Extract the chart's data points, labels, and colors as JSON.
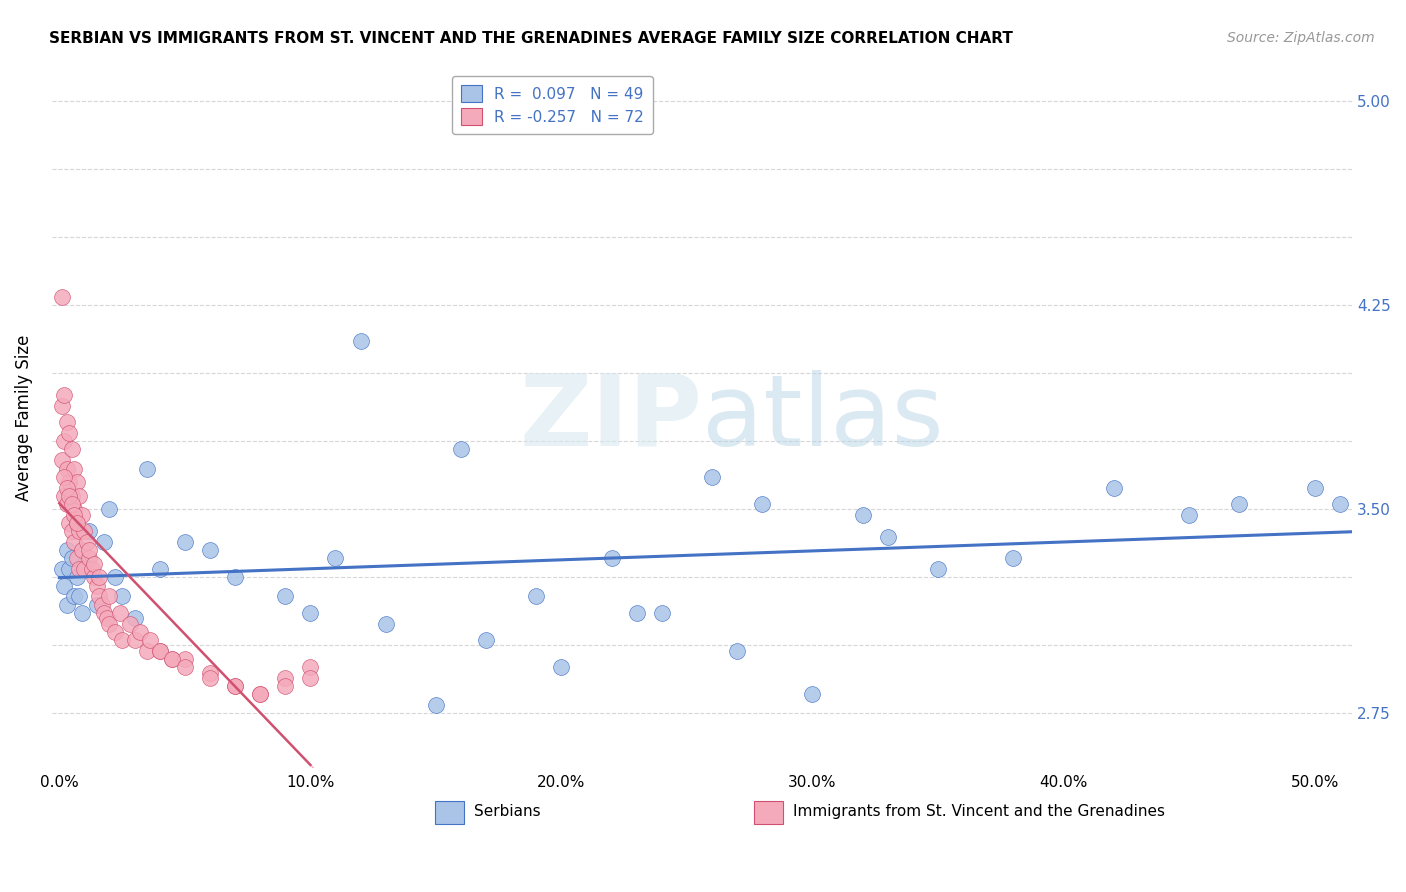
{
  "title": "SERBIAN VS IMMIGRANTS FROM ST. VINCENT AND THE GRENADINES AVERAGE FAMILY SIZE CORRELATION CHART",
  "source": "Source: ZipAtlas.com",
  "ylabel": "Average Family Size",
  "yticks_right": [
    2.75,
    3.5,
    4.25,
    5.0
  ],
  "yticks_grid": [
    2.75,
    3.0,
    3.25,
    3.5,
    3.75,
    4.0,
    4.25,
    4.5,
    4.75,
    5.0
  ],
  "ymin": 2.55,
  "ymax": 5.12,
  "xmin": -0.003,
  "xmax": 0.515,
  "xticks": [
    0.0,
    0.1,
    0.2,
    0.3,
    0.4,
    0.5
  ],
  "xtick_labels": [
    "0.0%",
    "10.0%",
    "20.0%",
    "30.0%",
    "40.0%",
    "50.0%"
  ],
  "legend_r1": "R =  0.097   N = 49",
  "legend_r2": "R = -0.257   N = 72",
  "legend_color1": "#aac4e8",
  "legend_color2": "#f4aabb",
  "scatter_color1": "#aac4e8",
  "scatter_color2": "#f4aabb",
  "line_color1": "#4472c4",
  "line_color2": "#d05070",
  "watermark_zip": "ZIP",
  "watermark_atlas": "atlas",
  "blue_x": [
    0.001,
    0.002,
    0.003,
    0.003,
    0.004,
    0.005,
    0.006,
    0.007,
    0.008,
    0.009,
    0.01,
    0.012,
    0.015,
    0.018,
    0.02,
    0.022,
    0.025,
    0.03,
    0.035,
    0.04,
    0.05,
    0.06,
    0.07,
    0.09,
    0.1,
    0.11,
    0.13,
    0.15,
    0.17,
    0.2,
    0.22,
    0.24,
    0.26,
    0.28,
    0.3,
    0.32,
    0.35,
    0.38,
    0.42,
    0.45,
    0.47,
    0.5,
    0.51,
    0.12,
    0.16,
    0.19,
    0.23,
    0.27,
    0.33
  ],
  "blue_y": [
    3.28,
    3.22,
    3.35,
    3.15,
    3.28,
    3.32,
    3.18,
    3.25,
    3.18,
    3.12,
    3.3,
    3.42,
    3.15,
    3.38,
    3.5,
    3.25,
    3.18,
    3.1,
    3.65,
    3.28,
    3.38,
    3.35,
    3.25,
    3.18,
    3.12,
    3.32,
    3.08,
    2.78,
    3.02,
    2.92,
    3.32,
    3.12,
    3.62,
    3.52,
    2.82,
    3.48,
    3.28,
    3.32,
    3.58,
    3.48,
    3.52,
    3.58,
    3.52,
    4.12,
    3.72,
    3.18,
    3.12,
    2.98,
    3.4
  ],
  "pink_x": [
    0.001,
    0.001,
    0.001,
    0.002,
    0.002,
    0.002,
    0.003,
    0.003,
    0.003,
    0.004,
    0.004,
    0.004,
    0.005,
    0.005,
    0.005,
    0.006,
    0.006,
    0.006,
    0.007,
    0.007,
    0.007,
    0.008,
    0.008,
    0.008,
    0.009,
    0.009,
    0.01,
    0.01,
    0.011,
    0.012,
    0.013,
    0.014,
    0.015,
    0.016,
    0.017,
    0.018,
    0.019,
    0.02,
    0.022,
    0.025,
    0.03,
    0.035,
    0.04,
    0.045,
    0.05,
    0.06,
    0.07,
    0.08,
    0.09,
    0.1,
    0.012,
    0.014,
    0.016,
    0.02,
    0.024,
    0.028,
    0.032,
    0.036,
    0.04,
    0.045,
    0.05,
    0.06,
    0.07,
    0.08,
    0.09,
    0.1,
    0.002,
    0.003,
    0.004,
    0.005,
    0.006,
    0.007
  ],
  "pink_y": [
    4.28,
    3.88,
    3.68,
    3.92,
    3.75,
    3.55,
    3.82,
    3.65,
    3.52,
    3.78,
    3.6,
    3.45,
    3.72,
    3.55,
    3.42,
    3.65,
    3.5,
    3.38,
    3.6,
    3.45,
    3.32,
    3.55,
    3.42,
    3.28,
    3.48,
    3.35,
    3.42,
    3.28,
    3.38,
    3.32,
    3.28,
    3.25,
    3.22,
    3.18,
    3.15,
    3.12,
    3.1,
    3.08,
    3.05,
    3.02,
    3.02,
    2.98,
    2.98,
    2.95,
    2.95,
    2.9,
    2.85,
    2.82,
    2.88,
    2.92,
    3.35,
    3.3,
    3.25,
    3.18,
    3.12,
    3.08,
    3.05,
    3.02,
    2.98,
    2.95,
    2.92,
    2.88,
    2.85,
    2.82,
    2.85,
    2.88,
    3.62,
    3.58,
    3.55,
    3.52,
    3.48,
    3.45
  ]
}
